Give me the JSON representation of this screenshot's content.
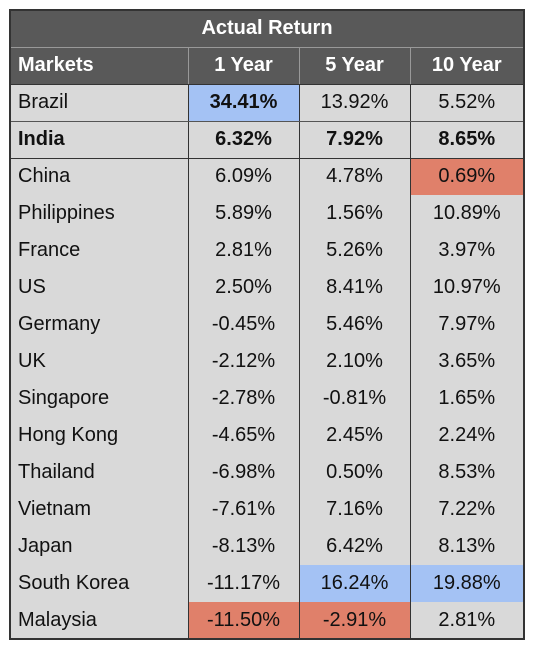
{
  "table": {
    "title": "Actual Return",
    "header": [
      "Markets",
      "1 Year",
      "5 Year",
      "10 Year"
    ],
    "rows": [
      [
        "Brazil",
        "34.41%",
        "13.92%",
        "5.52%"
      ],
      [
        "India",
        "6.32%",
        "7.92%",
        "8.65%"
      ],
      [
        "China",
        "6.09%",
        "4.78%",
        "0.69%"
      ],
      [
        "Philippines",
        "5.89%",
        "1.56%",
        "10.89%"
      ],
      [
        "France",
        "2.81%",
        "5.26%",
        "3.97%"
      ],
      [
        "US",
        "2.50%",
        "8.41%",
        "10.97%"
      ],
      [
        "Germany",
        "-0.45%",
        "5.46%",
        "7.97%"
      ],
      [
        "UK",
        "-2.12%",
        "2.10%",
        "3.65%"
      ],
      [
        "Singapore",
        "-2.78%",
        "-0.81%",
        "1.65%"
      ],
      [
        "Hong Kong",
        "-4.65%",
        "2.45%",
        "2.24%"
      ],
      [
        "Thailand",
        "-6.98%",
        "0.50%",
        "8.53%"
      ],
      [
        "Vietnam",
        "-7.61%",
        "7.16%",
        "7.22%"
      ],
      [
        "Japan",
        "-8.13%",
        "6.42%",
        "8.13%"
      ],
      [
        "South Korea",
        "-11.17%",
        "16.24%",
        "19.88%"
      ],
      [
        "Malaysia",
        "-11.50%",
        "-2.91%",
        "2.81%"
      ]
    ]
  }
}
